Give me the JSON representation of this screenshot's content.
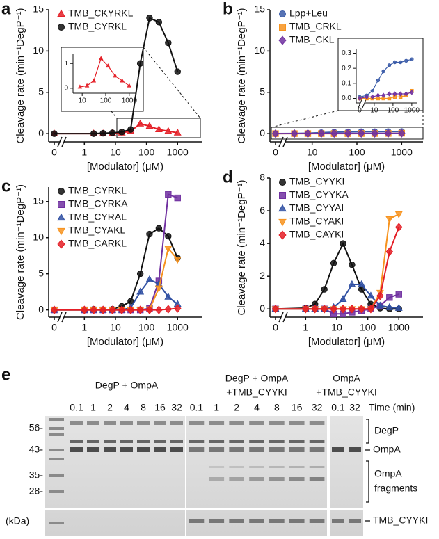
{
  "chart_data": [
    {
      "type": "line",
      "label": "a",
      "x_label": "[Modulator] (μM)",
      "y_label": "Cleavage rate (min⁻¹DegP⁻¹)",
      "xlog": true,
      "x": [
        0,
        2,
        4,
        8,
        16,
        31,
        63,
        125,
        250,
        500,
        1000
      ],
      "xlim": [
        0,
        6000
      ],
      "xticks": [
        0,
        1,
        10,
        100,
        1000
      ],
      "ylim": [
        -1,
        15
      ],
      "yticks": [
        0,
        5,
        10,
        15
      ],
      "series": [
        {
          "name": "TMB_CKYRKL",
          "color": "#e41e26",
          "marker": "triangle",
          "values": [
            0,
            0,
            0,
            0.05,
            0.1,
            0.3,
            1.2,
            0.9,
            0.5,
            0.3,
            0.1
          ]
        },
        {
          "name": "TMB_CYRKL",
          "color": "#111111",
          "marker": "circle",
          "values": [
            0,
            0,
            0.05,
            0.1,
            0.2,
            0.5,
            8.5,
            14,
            13.5,
            11,
            7.5
          ]
        }
      ]
    },
    {
      "type": "line",
      "label": "b",
      "x_label": "[Modulator] (μM)",
      "y_label": "Cleavage rate (min⁻¹DegP⁻¹)",
      "xlog": true,
      "x": [
        0,
        4,
        8,
        16,
        31,
        63,
        125,
        250,
        500,
        1000
      ],
      "xlim": [
        0,
        3000
      ],
      "xticks": [
        0,
        10,
        100,
        1000
      ],
      "ylim": [
        -1,
        15
      ],
      "yticks": [
        0,
        5,
        10,
        15
      ],
      "series": [
        {
          "name": "Lpp+Leu",
          "color": "#3a5ba8",
          "marker": "circle",
          "values": [
            0.01,
            0.02,
            0.05,
            0.12,
            0.18,
            0.22,
            0.24,
            0.24,
            0.25,
            0.26
          ]
        },
        {
          "name": "TMB_CRKL",
          "color": "#f7931e",
          "marker": "square",
          "values": [
            0,
            0,
            0,
            0,
            0,
            0,
            0.01,
            0.01,
            0.02,
            0.05
          ]
        },
        {
          "name": "TMB_CKL",
          "color": "#7030a0",
          "marker": "diamond",
          "values": [
            0,
            0.01,
            0.01,
            0.02,
            0.02,
            0.03,
            0.03,
            0.03,
            0.03,
            0.04
          ]
        }
      ]
    },
    {
      "type": "line",
      "label": "c",
      "x_label": "[Modulator] (μM)",
      "y_label": "Cleavage rate (min⁻¹DegP⁻¹)",
      "xlog": true,
      "x": [
        0,
        1,
        2,
        4,
        8,
        16,
        31,
        63,
        125,
        250,
        500,
        1000
      ],
      "xlim": [
        0,
        6000
      ],
      "xticks": [
        0,
        1,
        10,
        100,
        1000
      ],
      "ylim": [
        -1,
        17
      ],
      "yticks": [
        0,
        5,
        10,
        15
      ],
      "series": [
        {
          "name": "TMB_CYRKL",
          "color": "#111111",
          "marker": "circle",
          "values": [
            0,
            0,
            0.1,
            0,
            0.1,
            0.5,
            1.2,
            5,
            10.5,
            11.3,
            10.2,
            7.2
          ]
        },
        {
          "name": "TMB_CYRKA",
          "color": "#7030a0",
          "marker": "square",
          "values": [
            0,
            0,
            0,
            0,
            0,
            0,
            0,
            0,
            0.2,
            4,
            16,
            15.5
          ]
        },
        {
          "name": "TMB_CYRAL",
          "color": "#2f4fa2",
          "marker": "triangle",
          "values": [
            0,
            0,
            0,
            0,
            0,
            0,
            0.3,
            2.5,
            4.2,
            3.6,
            1.8,
            0.8
          ]
        },
        {
          "name": "TMB_CYAKL",
          "color": "#f7931e",
          "marker": "triangle-down",
          "values": [
            0,
            0,
            0,
            0,
            0,
            0,
            0,
            0,
            0.1,
            3,
            8.5,
            7
          ]
        },
        {
          "name": "TMB_CARKL",
          "color": "#e41e26",
          "marker": "diamond",
          "values": [
            0,
            0,
            0,
            0,
            0,
            0,
            0,
            0,
            0,
            0,
            0.1,
            0.2
          ]
        }
      ]
    },
    {
      "type": "line",
      "label": "d",
      "x_label": "[Modulator] (μM)",
      "y_label": "Cleavage rate (min⁻¹DegP⁻¹)",
      "xlog": true,
      "x": [
        0,
        1,
        2,
        4,
        8,
        16,
        31,
        63,
        125,
        250,
        500,
        1000
      ],
      "xlim": [
        0,
        6000
      ],
      "xticks": [
        0,
        1,
        10,
        100,
        1000
      ],
      "ylim": [
        -0.5,
        8
      ],
      "yticks": [
        0,
        2,
        4,
        6,
        8
      ],
      "series": [
        {
          "name": "TMB_CYYKI",
          "color": "#111111",
          "marker": "circle",
          "values": [
            0,
            0.05,
            0.3,
            1.2,
            2.8,
            4,
            2.7,
            1.2,
            0.3,
            0.05,
            0,
            0
          ]
        },
        {
          "name": "TMB_CYYKA",
          "color": "#7030a0",
          "marker": "square",
          "values": [
            0,
            0,
            0,
            0,
            -0.3,
            -0.3,
            -0.2,
            -0.1,
            0,
            0.2,
            0.7,
            0.9
          ]
        },
        {
          "name": "TMB_CYYAI",
          "color": "#2f4fa2",
          "marker": "triangle",
          "values": [
            0,
            0,
            0,
            0,
            0.1,
            0.6,
            1.5,
            1.5,
            0.8,
            0.2,
            0.1,
            0.05
          ]
        },
        {
          "name": "TMB_CYAKI",
          "color": "#f7931e",
          "marker": "triangle-down",
          "values": [
            0,
            0,
            0,
            0,
            0,
            0,
            0,
            0,
            0,
            1,
            5.5,
            5.8
          ]
        },
        {
          "name": "TMB_CAYKI",
          "color": "#e41e26",
          "marker": "diamond",
          "values": [
            0,
            0,
            0,
            0,
            0,
            0,
            0,
            0,
            0,
            0.8,
            3.5,
            5
          ]
        }
      ]
    },
    {
      "type": "line",
      "xlog": true,
      "x": [
        8,
        16,
        31,
        63,
        125,
        250,
        500,
        1000
      ],
      "xlim": [
        5,
        2000
      ],
      "xticks": [
        10,
        100,
        1000
      ],
      "ylim": [
        -0.2,
        1.4
      ],
      "yticks": [
        0,
        1
      ],
      "series": [
        {
          "color": "#e41e26",
          "marker": "triangle",
          "values": [
            0.05,
            0.1,
            0.3,
            1.2,
            0.9,
            0.5,
            0.3,
            0.1
          ]
        }
      ]
    },
    {
      "type": "line",
      "xlog": true,
      "x": [
        0,
        4,
        8,
        16,
        31,
        63,
        125,
        250,
        500,
        1000
      ],
      "xlim": [
        0,
        2000
      ],
      "xticks": [
        0,
        10,
        100,
        1000
      ],
      "ylim": [
        -0.03,
        0.33
      ],
      "yticks": [
        {
          "value": 0,
          "label": "0.0"
        },
        {
          "value": 0.1,
          "label": "0.1"
        },
        {
          "value": 0.2,
          "label": "0.2"
        },
        {
          "value": 0.3,
          "label": "0.3"
        }
      ],
      "series": [
        {
          "color": "#3a5ba8",
          "marker": "circle",
          "values": [
            0.01,
            0.02,
            0.05,
            0.12,
            0.18,
            0.22,
            0.24,
            0.24,
            0.25,
            0.26
          ]
        },
        {
          "color": "#f7931e",
          "marker": "square",
          "values": [
            0,
            0,
            0,
            0,
            0,
            0,
            0.01,
            0.01,
            0.02,
            0.05
          ]
        },
        {
          "color": "#7030a0",
          "marker": "diamond",
          "values": [
            0,
            0.01,
            0.01,
            0.02,
            0.02,
            0.03,
            0.03,
            0.03,
            0.03,
            0.04
          ]
        }
      ]
    }
  ],
  "gel": {
    "label": "e",
    "groups": [
      {
        "title": [
          "DegP + OmpA"
        ],
        "lanes": [
          "0.1",
          "1",
          "2",
          "4",
          "8",
          "16",
          "32"
        ]
      },
      {
        "title": [
          "DegP + OmpA",
          "+TMB_CYYKI"
        ],
        "lanes": [
          "0.1",
          "1",
          "2",
          "4",
          "8",
          "16",
          "32"
        ]
      },
      {
        "title": [
          "OmpA",
          "+TMB_CYYKI"
        ],
        "lanes": [
          "0.1",
          "32"
        ]
      }
    ],
    "time_label": "Time (min)",
    "markers": [
      "56-",
      "43-",
      "35-",
      "28-"
    ],
    "unit": "(kDa)",
    "bands": [
      [
        "DegP"
      ],
      [
        "OmpA"
      ],
      [
        "OmpA",
        "fragments"
      ],
      [
        "TMB_CYYKI"
      ]
    ]
  }
}
